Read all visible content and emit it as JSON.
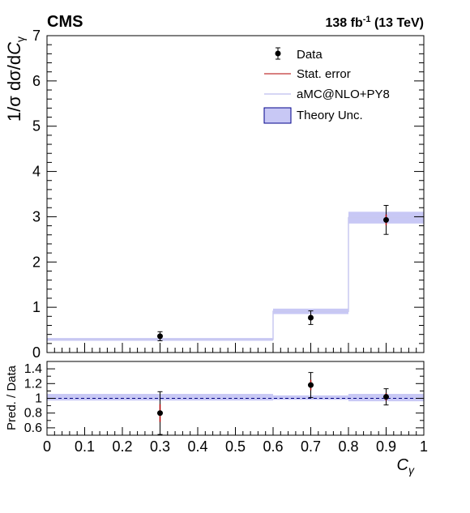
{
  "header": {
    "experiment": "CMS",
    "lumi_value": "138 fb",
    "lumi_exp": "-1",
    "lumi_energy": " (13 TeV)"
  },
  "legend": {
    "data": "Data",
    "stat": "Stat. error",
    "mc": "aMC@NLO+PY8",
    "theory": "Theory Unc."
  },
  "colors": {
    "data": "#000000",
    "stat": "#b00000",
    "mc_line": "#c8c8f0",
    "band_fill": "#c8c8f5",
    "band_edge": "#00008b",
    "ref_line": "#000080"
  },
  "chart_data": [
    {
      "type": "line",
      "name": "main",
      "ylabel_main": "1/σ dσ/d",
      "ylabel_sym": "C",
      "ylabel_sub": "γ",
      "xlim": [
        0,
        1
      ],
      "ylim": [
        0,
        7
      ],
      "yticks": [
        "0",
        "1",
        "2",
        "3",
        "4",
        "5",
        "6",
        "7"
      ],
      "bins": [
        [
          0,
          0.6
        ],
        [
          0.6,
          0.8
        ],
        [
          0.8,
          1.0
        ]
      ],
      "prediction": [
        0.29,
        0.91,
        2.98
      ],
      "theory_unc": [
        0.03,
        0.06,
        0.13
      ],
      "data": {
        "x": [
          0.3,
          0.7,
          0.9
        ],
        "y": [
          0.36,
          0.77,
          2.93
        ],
        "total_err": [
          0.1,
          0.15,
          0.32
        ],
        "stat_err": [
          0.04,
          0.06,
          0.12
        ]
      }
    },
    {
      "type": "line",
      "name": "ratio",
      "ylabel": "Pred. / Data",
      "xlabel_sym": "C",
      "xlabel_sub": "γ",
      "xlim": [
        0,
        1
      ],
      "ylim": [
        0.5,
        1.5
      ],
      "yticks": [
        "0.6",
        "0.8",
        "1",
        "1.2",
        "1.4"
      ],
      "xticks": [
        "0",
        "0.1",
        "0.2",
        "0.3",
        "0.4",
        "0.5",
        "0.6",
        "0.7",
        "0.8",
        "0.9",
        "1"
      ],
      "band": [
        [
          0.97,
          1.06
        ],
        [
          0.98,
          1.04
        ],
        [
          0.96,
          1.06
        ]
      ],
      "data": {
        "x": [
          0.3,
          0.7,
          0.9
        ],
        "y": [
          0.8,
          1.18,
          1.02
        ],
        "total_err": [
          0.29,
          0.17,
          0.11
        ],
        "stat_err": [
          0.12,
          0.07,
          0.05
        ]
      }
    }
  ]
}
